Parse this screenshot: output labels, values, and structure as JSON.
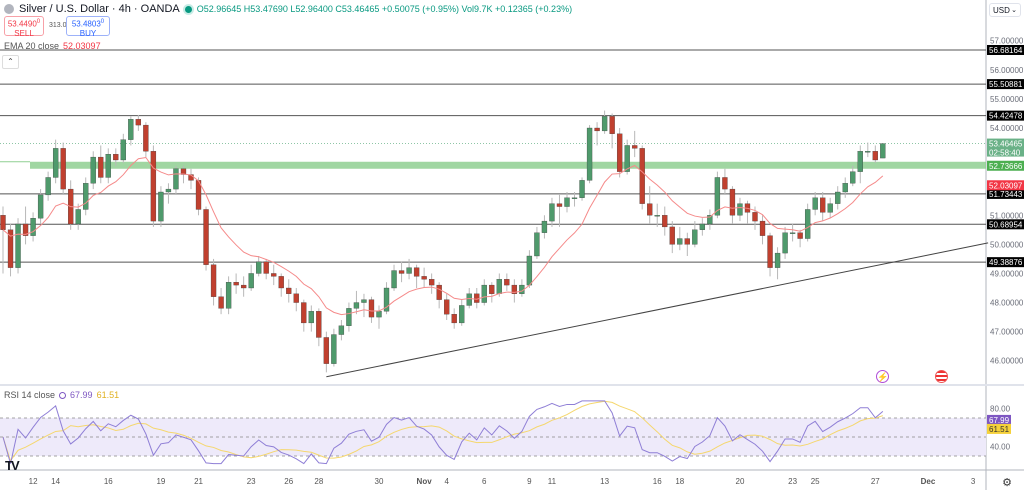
{
  "header": {
    "title": "Silver / U.S. Dollar · 4h · OANDA",
    "ohlc": "O52.96645 H53.47690 L52.96400 C53.46465 +0.50075 (+0.95%) Vol9.7K +0.12365 (+0.23%)",
    "sell_price": "53.4490",
    "sell_sup": "0",
    "sell_label": "SELL",
    "spread": "313.0",
    "buy_price": "53.4803",
    "buy_sup": "0",
    "buy_label": "BUY",
    "ema_label": "EMA 20 close",
    "ema_value": "52.03097",
    "collapse_icon": "chevron-up-icon",
    "currency": "USD"
  },
  "rsi_header": {
    "label": "RSI 14 close",
    "rsi": "67.99",
    "ma": "61.51"
  },
  "colors": {
    "up": "#4f9a6c",
    "down": "#c0402f",
    "ema": "#f58a8a",
    "rsi": "#8f7fd6",
    "rsi_ma": "#f5d76e",
    "zone": "#8fcf92",
    "rsi_band": "#eeeafa"
  },
  "icons": [
    "lightning-icon",
    "us-flag-icon",
    "tradingview-logo",
    "gear-icon"
  ],
  "chart_data": {
    "type": "candlestick",
    "title": "Silver / U.S. Dollar · 4h · OANDA",
    "ylim": [
      45.2,
      58.4
    ],
    "y_ticks": [
      "57.00000",
      "56.00000",
      "55.00000",
      "54.00000",
      "51.00000",
      "50.00000",
      "49.00000",
      "48.00000",
      "47.00000",
      "46.00000"
    ],
    "x_ticks": [
      {
        "label": "12",
        "index": 4
      },
      {
        "label": "14",
        "index": 7
      },
      {
        "label": "16",
        "index": 14
      },
      {
        "label": "19",
        "index": 21
      },
      {
        "label": "21",
        "index": 26
      },
      {
        "label": "23",
        "index": 33
      },
      {
        "label": "26",
        "index": 38
      },
      {
        "label": "28",
        "index": 42
      },
      {
        "label": "30",
        "index": 50
      },
      {
        "label": "Nov",
        "index": 56
      },
      {
        "label": "4",
        "index": 59
      },
      {
        "label": "6",
        "index": 64
      },
      {
        "label": "9",
        "index": 70
      },
      {
        "label": "11",
        "index": 73
      },
      {
        "label": "13",
        "index": 80
      },
      {
        "label": "16",
        "index": 87
      },
      {
        "label": "18",
        "index": 90
      },
      {
        "label": "20",
        "index": 98
      },
      {
        "label": "23",
        "index": 105
      },
      {
        "label": "25",
        "index": 108
      },
      {
        "label": "27",
        "index": 116
      },
      {
        "label": "Dec",
        "index": 123
      },
      {
        "label": "3",
        "index": 129
      }
    ],
    "levels": [
      "56.68164",
      "55.50881",
      "54.42478",
      "51.73443",
      "50.68954",
      "49.38876"
    ],
    "zone": {
      "price": "52.73666"
    },
    "last_price": {
      "price": "53.46465",
      "countdown": "02:58:40"
    },
    "ema": {
      "period": 20,
      "last": "52.03097"
    },
    "trendline": [
      {
        "index": 43,
        "price": 45.45
      },
      {
        "index": 131,
        "price": 50.05
      }
    ],
    "rsi": {
      "period": 14,
      "last": "67.99",
      "ma_last": "61.51",
      "ylim": [
        20,
        90
      ],
      "y_ticks": [
        "80.00",
        "40.00"
      ],
      "bands": [
        70,
        50,
        30
      ]
    },
    "ohlc": [
      [
        51.0,
        51.3,
        49.0,
        50.5
      ],
      [
        50.5,
        50.7,
        48.9,
        49.2
      ],
      [
        49.2,
        50.9,
        49.0,
        50.7
      ],
      [
        50.7,
        51.3,
        50.0,
        50.3
      ],
      [
        50.3,
        51.1,
        50.1,
        50.9
      ],
      [
        50.9,
        51.9,
        50.7,
        51.7
      ],
      [
        51.7,
        52.5,
        51.5,
        52.3
      ],
      [
        52.3,
        53.6,
        52.1,
        53.3
      ],
      [
        53.3,
        53.5,
        51.7,
        51.9
      ],
      [
        51.9,
        52.2,
        50.5,
        50.7
      ],
      [
        50.7,
        51.4,
        50.5,
        51.2
      ],
      [
        51.2,
        52.3,
        51.0,
        52.1
      ],
      [
        52.1,
        53.2,
        51.9,
        53.0
      ],
      [
        53.0,
        53.4,
        52.1,
        52.3
      ],
      [
        52.3,
        53.3,
        52.1,
        53.1
      ],
      [
        53.1,
        53.3,
        52.7,
        52.9
      ],
      [
        52.9,
        53.8,
        52.8,
        53.6
      ],
      [
        53.6,
        54.4,
        53.4,
        54.3
      ],
      [
        54.3,
        54.45,
        53.9,
        54.1
      ],
      [
        54.1,
        54.2,
        53.0,
        53.2
      ],
      [
        53.2,
        53.4,
        50.6,
        50.8
      ],
      [
        50.8,
        52.0,
        50.6,
        51.8
      ],
      [
        51.8,
        52.1,
        51.4,
        51.9
      ],
      [
        51.9,
        52.7,
        51.7,
        52.6
      ],
      [
        52.6,
        52.7,
        52.1,
        52.4
      ],
      [
        52.4,
        52.6,
        51.9,
        52.2
      ],
      [
        52.2,
        52.3,
        51.0,
        51.2
      ],
      [
        51.2,
        51.3,
        49.1,
        49.3
      ],
      [
        49.3,
        49.5,
        47.9,
        48.2
      ],
      [
        48.2,
        48.5,
        47.6,
        47.8
      ],
      [
        47.8,
        48.9,
        47.6,
        48.7
      ],
      [
        48.7,
        49.0,
        48.3,
        48.6
      ],
      [
        48.6,
        48.9,
        48.2,
        48.5
      ],
      [
        48.5,
        49.3,
        48.4,
        49.0
      ],
      [
        49.0,
        49.6,
        48.9,
        49.4
      ],
      [
        49.4,
        49.5,
        48.8,
        49.0
      ],
      [
        49.0,
        49.3,
        48.6,
        48.9
      ],
      [
        48.9,
        49.0,
        48.2,
        48.5
      ],
      [
        48.5,
        48.8,
        48.0,
        48.3
      ],
      [
        48.3,
        48.5,
        47.7,
        48.0
      ],
      [
        48.0,
        48.1,
        47.0,
        47.3
      ],
      [
        47.3,
        47.9,
        47.0,
        47.7
      ],
      [
        47.7,
        47.8,
        46.5,
        46.8
      ],
      [
        46.8,
        47.0,
        45.6,
        45.9
      ],
      [
        45.9,
        47.1,
        45.8,
        46.9
      ],
      [
        46.9,
        47.4,
        46.7,
        47.2
      ],
      [
        47.2,
        48.0,
        47.0,
        47.8
      ],
      [
        47.8,
        48.4,
        47.6,
        48.0
      ],
      [
        48.0,
        48.3,
        47.5,
        48.1
      ],
      [
        48.1,
        48.2,
        47.3,
        47.5
      ],
      [
        47.5,
        47.9,
        47.1,
        47.7
      ],
      [
        47.7,
        48.7,
        47.6,
        48.5
      ],
      [
        48.5,
        49.3,
        48.4,
        49.1
      ],
      [
        49.1,
        49.4,
        48.7,
        49.0
      ],
      [
        49.0,
        49.5,
        48.8,
        49.2
      ],
      [
        49.2,
        49.3,
        48.5,
        48.9
      ],
      [
        48.9,
        49.2,
        48.5,
        48.8
      ],
      [
        48.8,
        49.0,
        48.3,
        48.6
      ],
      [
        48.6,
        48.7,
        47.8,
        48.1
      ],
      [
        48.1,
        48.3,
        47.4,
        47.6
      ],
      [
        47.6,
        47.8,
        47.1,
        47.3
      ],
      [
        47.3,
        48.1,
        47.2,
        47.9
      ],
      [
        47.9,
        48.5,
        47.8,
        48.3
      ],
      [
        48.3,
        48.5,
        47.8,
        48.0
      ],
      [
        48.0,
        48.8,
        47.9,
        48.6
      ],
      [
        48.6,
        48.7,
        48.0,
        48.3
      ],
      [
        48.3,
        49.0,
        48.2,
        48.8
      ],
      [
        48.8,
        49.0,
        48.4,
        48.6
      ],
      [
        48.6,
        48.8,
        48.0,
        48.3
      ],
      [
        48.3,
        48.8,
        48.2,
        48.6
      ],
      [
        48.6,
        49.8,
        48.5,
        49.6
      ],
      [
        49.6,
        50.6,
        49.5,
        50.4
      ],
      [
        50.4,
        51.0,
        50.2,
        50.8
      ],
      [
        50.8,
        51.6,
        50.6,
        51.4
      ],
      [
        51.4,
        51.7,
        50.6,
        51.3
      ],
      [
        51.3,
        51.8,
        51.1,
        51.6
      ],
      [
        51.6,
        51.8,
        51.3,
        51.6
      ],
      [
        51.6,
        52.3,
        51.5,
        52.2
      ],
      [
        52.2,
        54.1,
        52.1,
        54.0
      ],
      [
        54.0,
        54.2,
        53.4,
        53.9
      ],
      [
        53.9,
        54.6,
        53.8,
        54.4
      ],
      [
        54.4,
        54.5,
        53.3,
        53.8
      ],
      [
        53.8,
        54.0,
        52.3,
        52.5
      ],
      [
        52.5,
        53.6,
        52.4,
        53.4
      ],
      [
        53.4,
        53.9,
        53.0,
        53.3
      ],
      [
        53.3,
        53.4,
        51.2,
        51.4
      ],
      [
        51.4,
        52.0,
        50.7,
        51.0
      ],
      [
        51.0,
        51.4,
        50.6,
        51.0
      ],
      [
        51.0,
        51.3,
        50.3,
        50.6
      ],
      [
        50.6,
        50.8,
        49.7,
        50.0
      ],
      [
        50.0,
        50.6,
        49.8,
        50.2
      ],
      [
        50.2,
        50.4,
        49.6,
        50.0
      ],
      [
        50.0,
        50.8,
        49.9,
        50.5
      ],
      [
        50.5,
        50.9,
        50.3,
        50.7
      ],
      [
        50.7,
        51.2,
        50.5,
        51.0
      ],
      [
        51.0,
        52.5,
        50.9,
        52.3
      ],
      [
        52.3,
        52.6,
        51.7,
        51.9
      ],
      [
        51.9,
        52.0,
        50.7,
        51.0
      ],
      [
        51.0,
        51.6,
        50.8,
        51.4
      ],
      [
        51.4,
        51.5,
        50.7,
        51.1
      ],
      [
        51.1,
        51.3,
        50.5,
        50.8
      ],
      [
        50.8,
        51.0,
        50.0,
        50.3
      ],
      [
        50.3,
        50.4,
        48.9,
        49.2
      ],
      [
        49.2,
        49.9,
        48.8,
        49.7
      ],
      [
        49.7,
        50.6,
        49.5,
        50.4
      ],
      [
        50.4,
        50.7,
        50.1,
        50.4
      ],
      [
        50.4,
        50.5,
        49.9,
        50.2
      ],
      [
        50.2,
        51.4,
        50.1,
        51.2
      ],
      [
        51.2,
        51.8,
        51.0,
        51.6
      ],
      [
        51.6,
        51.8,
        50.8,
        51.1
      ],
      [
        51.1,
        51.6,
        50.9,
        51.4
      ],
      [
        51.4,
        52.0,
        51.2,
        51.8
      ],
      [
        51.8,
        52.3,
        51.6,
        52.1
      ],
      [
        52.1,
        52.7,
        52.0,
        52.5
      ],
      [
        52.5,
        53.4,
        52.1,
        53.2
      ],
      [
        53.2,
        53.5,
        53.0,
        53.2
      ],
      [
        53.2,
        53.4,
        52.8,
        52.9
      ],
      [
        52.96645,
        53.4769,
        52.964,
        53.46465
      ]
    ]
  }
}
